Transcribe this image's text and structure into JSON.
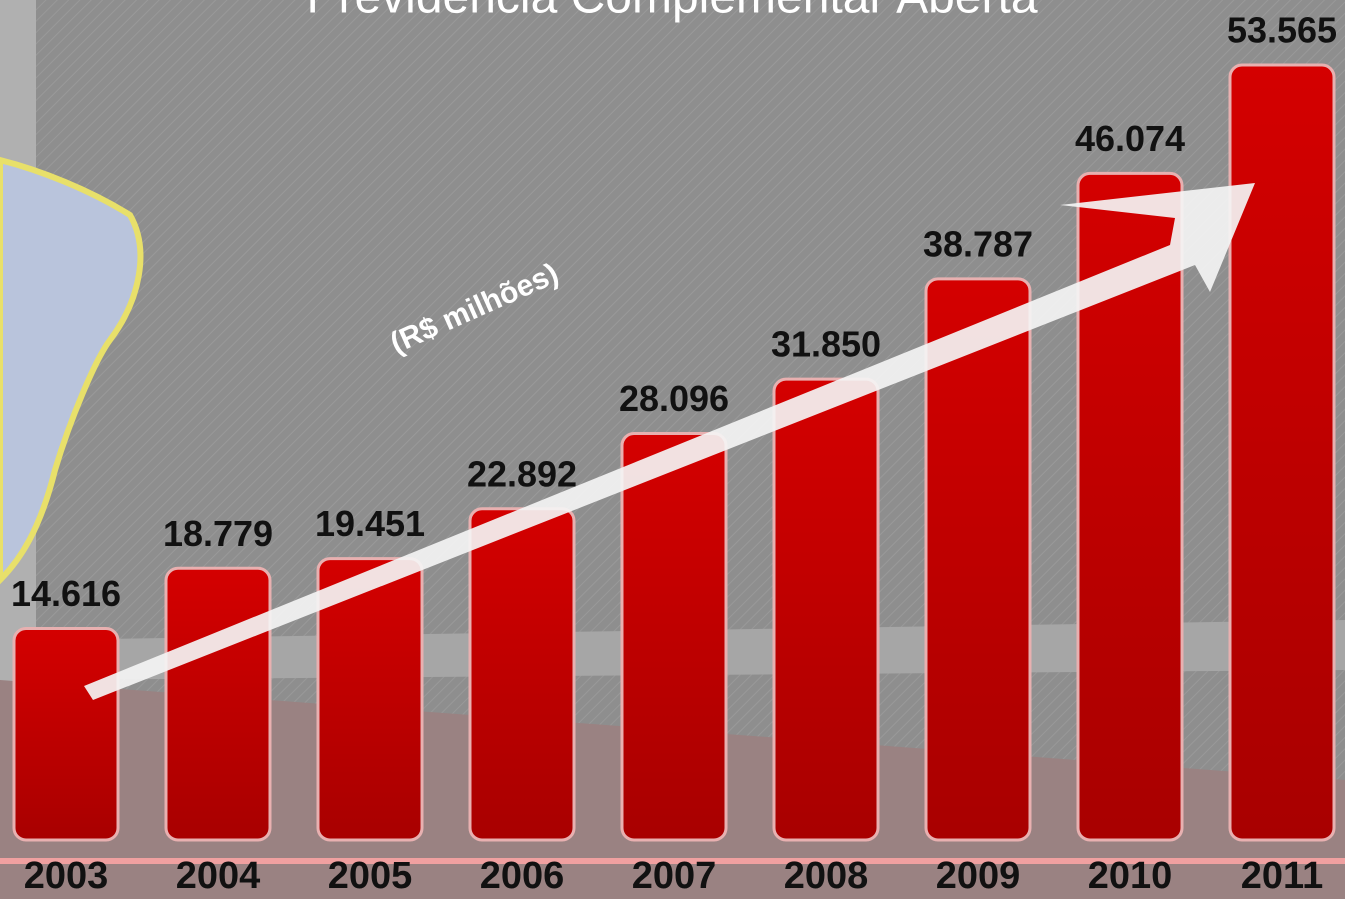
{
  "chart_data": {
    "type": "bar",
    "title": "Previdência Complementar Aberta",
    "annotation": "(R$ milhões)",
    "categories": [
      "2003",
      "2004",
      "2005",
      "2006",
      "2007",
      "2008",
      "2009",
      "2010",
      "2011"
    ],
    "values": [
      14616,
      18779,
      19451,
      22892,
      28096,
      31850,
      38787,
      46074,
      53565
    ],
    "value_labels": [
      "14.616",
      "18.779",
      "19.451",
      "22.892",
      "28.096",
      "31.850",
      "38.787",
      "46.074",
      "53.565"
    ],
    "color": "#c80000"
  }
}
